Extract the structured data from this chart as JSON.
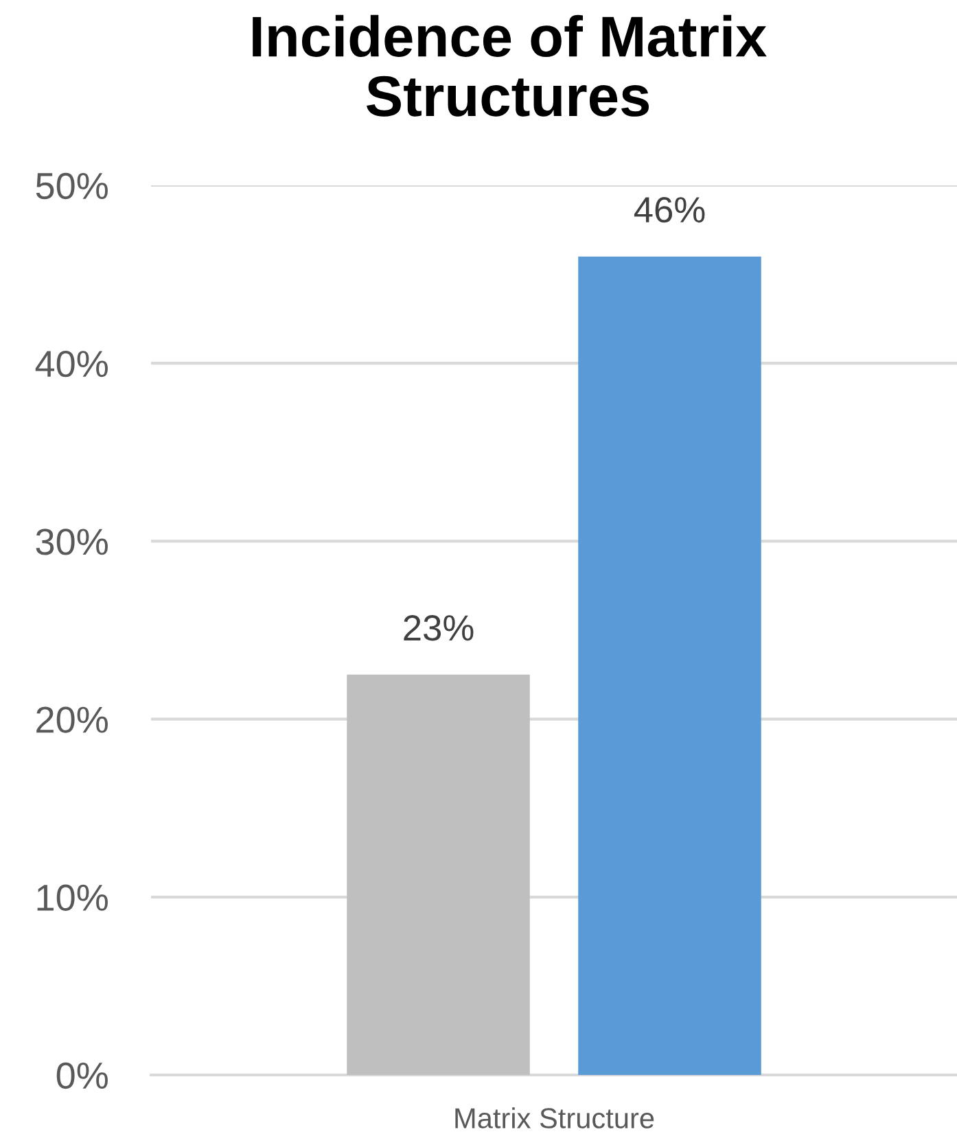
{
  "chart_data": {
    "type": "bar",
    "title": "Incidence of Matrix\nStructures",
    "categories": [
      "Matrix Structure"
    ],
    "series": [
      {
        "color": "#bfbfbf",
        "values": [
          22.5
        ],
        "value_labels": [
          "23%"
        ]
      },
      {
        "color": "#5b9bd5",
        "values": [
          46
        ],
        "value_labels": [
          "46%"
        ]
      }
    ],
    "ylim": [
      0,
      50
    ],
    "yticks": [
      {
        "value": 0,
        "label": "0%"
      },
      {
        "value": 10,
        "label": "10%"
      },
      {
        "value": 20,
        "label": "20%"
      },
      {
        "value": 30,
        "label": "30%"
      },
      {
        "value": 40,
        "label": "40%"
      },
      {
        "value": 50,
        "label": "50%"
      }
    ],
    "grid": "y"
  }
}
